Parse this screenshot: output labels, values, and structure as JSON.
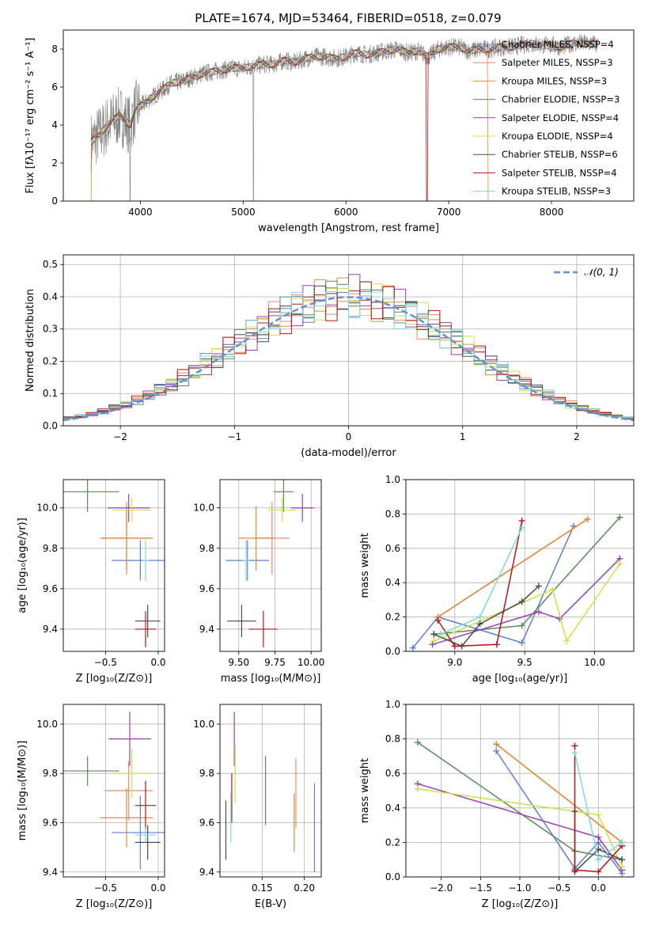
{
  "figure_title": "PLATE=1674, MJD=53464, FIBERID=0518, z=0.079",
  "series_colors": [
    "#5f7fd6",
    "#ec8a6d",
    "#e08a3a",
    "#5a8a5a",
    "#9b3fb0",
    "#cfe04a",
    "#4a4a4a",
    "#b01818",
    "#7fd8dc"
  ],
  "chart_data": [
    {
      "id": "spectrum",
      "type": "line",
      "xlabel": "wavelength [Angstrom, rest frame]",
      "ylabel": "Flux [fλ10⁻¹⁷ erg cm⁻² s⁻¹ A⁻¹]",
      "xlim": [
        3250,
        8800
      ],
      "ylim": [
        0,
        9
      ],
      "xticks": [
        4000,
        5000,
        6000,
        7000,
        8000
      ],
      "yticks": [
        0,
        2,
        4,
        6,
        8
      ],
      "grid": false,
      "legend_position": "right",
      "legend": [
        {
          "label": "Chabrier MILES, NSSP=4",
          "color": "#5f7fd6"
        },
        {
          "label": "Salpeter MILES, NSSP=3",
          "color": "#ec8a6d"
        },
        {
          "label": "Kroupa MILES, NSSP=3",
          "color": "#e08a3a"
        },
        {
          "label": "Chabrier ELODIE, NSSP=3",
          "color": "#5a8a5a"
        },
        {
          "label": "Salpeter ELODIE, NSSP=4",
          "color": "#9b3fb0"
        },
        {
          "label": "Kroupa ELODIE, NSSP=4",
          "color": "#cfe04a"
        },
        {
          "label": "Chabrier STELIB, NSSP=6",
          "color": "#4a4a4a"
        },
        {
          "label": "Salpeter STELIB, NSSP=4",
          "color": "#b01818"
        },
        {
          "label": "Kroupa STELIB, NSSP=3",
          "color": "#7fd8dc"
        }
      ],
      "model_x": [
        3520,
        3600,
        3700,
        3800,
        3900,
        3950,
        4000,
        4100,
        4200,
        4300,
        4400,
        4500,
        4600,
        4700,
        4800,
        4900,
        5000,
        5100,
        5200,
        5300,
        5400,
        5500,
        5600,
        5700,
        5800,
        5900,
        6000,
        6100,
        6200,
        6300,
        6400,
        6500,
        6600,
        6700,
        6800,
        6900,
        7000,
        7100,
        7200,
        7300,
        7400,
        7500,
        7600,
        7700,
        7800,
        7900,
        8000,
        8100,
        8200,
        8300,
        8400,
        8450
      ],
      "model_y": [
        3.1,
        3.5,
        4.1,
        4.5,
        4.0,
        4.8,
        5.0,
        5.4,
        5.8,
        6.2,
        6.3,
        6.5,
        6.7,
        6.8,
        6.9,
        7.0,
        7.0,
        7.1,
        7.2,
        7.2,
        7.4,
        7.3,
        7.5,
        7.6,
        7.6,
        7.5,
        7.6,
        7.8,
        7.7,
        7.8,
        7.9,
        8.0,
        7.8,
        7.9,
        7.6,
        8.0,
        8.1,
        8.1,
        7.9,
        8.0,
        8.0,
        8.1,
        8.1,
        8.2,
        8.3,
        8.2,
        8.2,
        8.1,
        8.3,
        8.3,
        8.3,
        8.2
      ]
    },
    {
      "id": "residuals",
      "type": "histogram",
      "xlabel": "(data-model)/error",
      "ylabel": "Normed distribution",
      "xlim": [
        -2.5,
        2.5
      ],
      "ylim": [
        0,
        0.53
      ],
      "xticks": [
        -2,
        -1,
        0,
        1,
        2
      ],
      "yticks": [
        0.0,
        0.1,
        0.2,
        0.3,
        0.4,
        0.5
      ],
      "grid": true,
      "legend_position": "upper right",
      "reference_label": "𝒩(0, 1)",
      "bin_width": 0.1,
      "bin_start": -2.5,
      "gaussian_color": "#5f8fd6"
    },
    {
      "id": "age_vs_Z",
      "type": "errorbar",
      "xlabel": "Z [log₁₀(Z/Z⊙)]",
      "ylabel": "age  [log₁₀(age/yr)]",
      "xlim": [
        -0.9,
        0.06
      ],
      "ylim": [
        9.29,
        10.14
      ],
      "xticks": [
        -0.5,
        0.0
      ],
      "yticks": [
        9.4,
        9.6,
        9.8,
        10.0
      ],
      "grid": true,
      "points": [
        {
          "x": -0.17,
          "y": 9.74,
          "xerr": 0.27,
          "yerr": 0.1
        },
        {
          "x": -0.3,
          "y": 9.85,
          "xerr": 0.25,
          "yerr": 0.18
        },
        {
          "x": -0.3,
          "y": 9.85,
          "xerr": 0.24,
          "yerr": 0.16
        },
        {
          "x": -0.67,
          "y": 10.08,
          "xerr": 0.3,
          "yerr": 0.1
        },
        {
          "x": -0.28,
          "y": 10.0,
          "xerr": 0.2,
          "yerr": 0.07
        },
        {
          "x": -0.25,
          "y": 9.99,
          "xerr": 0.18,
          "yerr": 0.06
        },
        {
          "x": -0.1,
          "y": 9.44,
          "xerr": 0.12,
          "yerr": 0.08
        },
        {
          "x": -0.12,
          "y": 9.4,
          "xerr": 0.1,
          "yerr": 0.09
        },
        {
          "x": -0.12,
          "y": 9.74,
          "xerr": 0.03,
          "yerr": 0.1
        }
      ]
    },
    {
      "id": "age_vs_mass",
      "type": "errorbar",
      "xlabel": "mass [log₁₀(M/M⊙)]",
      "ylabel": "",
      "xlim": [
        9.37,
        10.07
      ],
      "ylim": [
        9.29,
        10.14
      ],
      "xticks": [
        9.5,
        9.75,
        10.0
      ],
      "yticks": [
        9.4,
        9.6,
        9.8,
        10.0
      ],
      "grid": true,
      "points": [
        {
          "x": 9.56,
          "y": 9.74,
          "xerr": 0.15,
          "yerr": 0.1
        },
        {
          "x": 9.73,
          "y": 9.85,
          "xerr": 0.12,
          "yerr": 0.18
        },
        {
          "x": 9.62,
          "y": 9.85,
          "xerr": 0.12,
          "yerr": 0.16
        },
        {
          "x": 9.81,
          "y": 10.08,
          "xerr": 0.07,
          "yerr": 0.1
        },
        {
          "x": 9.94,
          "y": 10.0,
          "xerr": 0.08,
          "yerr": 0.07
        },
        {
          "x": 9.8,
          "y": 9.99,
          "xerr": 0.1,
          "yerr": 0.06
        },
        {
          "x": 9.52,
          "y": 9.44,
          "xerr": 0.1,
          "yerr": 0.08
        },
        {
          "x": 9.67,
          "y": 9.4,
          "xerr": 0.1,
          "yerr": 0.09
        },
        {
          "x": 9.55,
          "y": 9.74,
          "xerr": 0.02,
          "yerr": 0.1
        }
      ]
    },
    {
      "id": "weight_vs_age",
      "type": "line",
      "xlabel": "age  [log₁₀(age/yr)]",
      "ylabel": "mass weight",
      "xlim": [
        8.65,
        10.28
      ],
      "ylim": [
        0,
        1.0
      ],
      "xticks": [
        9.0,
        9.5,
        10.0
      ],
      "yticks": [
        0.0,
        0.2,
        0.4,
        0.6,
        0.8,
        1.0
      ],
      "grid": true,
      "series": [
        {
          "color": "#5f7fd6",
          "x": [
            8.7,
            8.88,
            9.48,
            9.85
          ],
          "y": [
            0.02,
            0.2,
            0.05,
            0.73
          ]
        },
        {
          "color": "#ec8a6d",
          "x": [
            8.88,
            9.95
          ],
          "y": [
            0.2,
            0.77
          ]
        },
        {
          "color": "#e08a3a",
          "x": [
            8.88,
            9.95
          ],
          "y": [
            0.2,
            0.77
          ]
        },
        {
          "color": "#5a8a5a",
          "x": [
            8.85,
            9.48,
            10.18
          ],
          "y": [
            0.1,
            0.15,
            0.78
          ]
        },
        {
          "color": "#9b3fb0",
          "x": [
            8.84,
            9.6,
            9.75,
            10.18
          ],
          "y": [
            0.04,
            0.23,
            0.19,
            0.54
          ]
        },
        {
          "color": "#cfe04a",
          "x": [
            8.85,
            9.7,
            9.8,
            10.18
          ],
          "y": [
            0.06,
            0.36,
            0.06,
            0.51
          ]
        },
        {
          "color": "#4a4a4a",
          "x": [
            8.85,
            9.05,
            9.18,
            9.48,
            9.6
          ],
          "y": [
            0.1,
            0.03,
            0.16,
            0.29,
            0.38
          ]
        },
        {
          "color": "#b01818",
          "x": [
            8.88,
            9.0,
            9.3,
            9.48
          ],
          "y": [
            0.18,
            0.03,
            0.04,
            0.76
          ]
        },
        {
          "color": "#7fd8dc",
          "x": [
            8.9,
            9.18,
            9.48
          ],
          "y": [
            0.1,
            0.2,
            0.72
          ]
        }
      ]
    },
    {
      "id": "mass_vs_Z",
      "type": "errorbar",
      "xlabel": "Z [log₁₀(Z/Z⊙)]",
      "ylabel": "mass [log₁₀(M/M⊙)]",
      "xlim": [
        -0.9,
        0.06
      ],
      "ylim": [
        9.38,
        10.08
      ],
      "xticks": [
        -0.5,
        0.0
      ],
      "yticks": [
        9.4,
        9.6,
        9.8,
        10.0
      ],
      "grid": true,
      "points": [
        {
          "x": -0.17,
          "y": 9.56,
          "xerr": 0.27,
          "yerr": 0.15
        },
        {
          "x": -0.28,
          "y": 9.73,
          "xerr": 0.23,
          "yerr": 0.12
        },
        {
          "x": -0.3,
          "y": 9.62,
          "xerr": 0.25,
          "yerr": 0.12
        },
        {
          "x": -0.67,
          "y": 9.81,
          "xerr": 0.3,
          "yerr": 0.06
        },
        {
          "x": -0.27,
          "y": 9.94,
          "xerr": 0.2,
          "yerr": 0.11
        },
        {
          "x": -0.25,
          "y": 9.8,
          "xerr": 0.18,
          "yerr": 0.1
        },
        {
          "x": -0.1,
          "y": 9.52,
          "xerr": 0.12,
          "yerr": 0.07
        },
        {
          "x": -0.12,
          "y": 9.67,
          "xerr": 0.1,
          "yerr": 0.1
        },
        {
          "x": -0.12,
          "y": 9.55,
          "xerr": 0.1,
          "yerr": 0.03
        }
      ]
    },
    {
      "id": "mass_vs_EBV",
      "type": "errorbar",
      "xlabel": "E(B-V)",
      "ylabel": "",
      "xlim": [
        0.1,
        0.22
      ],
      "ylim": [
        9.38,
        10.08
      ],
      "xticks": [
        0.15,
        0.2
      ],
      "yticks": [
        9.4,
        9.6,
        9.8,
        10.0
      ],
      "grid": true,
      "points": [
        {
          "x": 0.212,
          "y": 9.58,
          "xerr": 0,
          "yerr": 0.18
        },
        {
          "x": 0.19,
          "y": 9.72,
          "xerr": 0,
          "yerr": 0.14
        },
        {
          "x": 0.188,
          "y": 9.6,
          "xerr": 0,
          "yerr": 0.12
        },
        {
          "x": 0.154,
          "y": 9.73,
          "xerr": 0,
          "yerr": 0.14
        },
        {
          "x": 0.117,
          "y": 9.94,
          "xerr": 0,
          "yerr": 0.11
        },
        {
          "x": 0.118,
          "y": 9.8,
          "xerr": 0,
          "yerr": 0.12
        },
        {
          "x": 0.107,
          "y": 9.57,
          "xerr": 0,
          "yerr": 0.12
        },
        {
          "x": 0.114,
          "y": 9.7,
          "xerr": 0,
          "yerr": 0.1
        },
        {
          "x": 0.113,
          "y": 9.62,
          "xerr": 0,
          "yerr": 0.1
        }
      ]
    },
    {
      "id": "weight_vs_Z",
      "type": "line",
      "xlabel": "Z [log₁₀(Z/Z⊙)]",
      "ylabel": "mass weight",
      "xlim": [
        -2.45,
        0.45
      ],
      "ylim": [
        0,
        1.0
      ],
      "xticks": [
        -2.0,
        -1.5,
        -1.0,
        -0.5,
        0.0
      ],
      "yticks": [
        0.0,
        0.2,
        0.4,
        0.6,
        0.8,
        1.0
      ],
      "grid": true,
      "series": [
        {
          "color": "#5f7fd6",
          "x": [
            -1.3,
            -0.3,
            0.0,
            0.3
          ],
          "y": [
            0.73,
            0.05,
            0.2,
            0.02
          ]
        },
        {
          "color": "#ec8a6d",
          "x": [
            -1.3,
            0.3
          ],
          "y": [
            0.77,
            0.2
          ]
        },
        {
          "color": "#e08a3a",
          "x": [
            -1.3,
            0.3
          ],
          "y": [
            0.77,
            0.2
          ]
        },
        {
          "color": "#5a8a5a",
          "x": [
            -2.3,
            -0.3,
            0.3
          ],
          "y": [
            0.78,
            0.15,
            0.1
          ]
        },
        {
          "color": "#9b3fb0",
          "x": [
            -2.3,
            0.0,
            0.3
          ],
          "y": [
            0.54,
            0.23,
            0.04
          ]
        },
        {
          "color": "#cfe04a",
          "x": [
            -2.3,
            0.0,
            0.3
          ],
          "y": [
            0.51,
            0.36,
            0.06
          ]
        },
        {
          "color": "#4a4a4a",
          "x": [
            -0.3,
            -0.3,
            0.0,
            0.3
          ],
          "y": [
            0.38,
            0.03,
            0.16,
            0.1
          ]
        },
        {
          "color": "#b01818",
          "x": [
            -0.3,
            -0.3,
            0.0,
            0.3
          ],
          "y": [
            0.76,
            0.04,
            0.03,
            0.18
          ]
        },
        {
          "color": "#7fd8dc",
          "x": [
            -0.3,
            0.0,
            0.3
          ],
          "y": [
            0.72,
            0.1,
            0.2
          ]
        }
      ]
    }
  ]
}
